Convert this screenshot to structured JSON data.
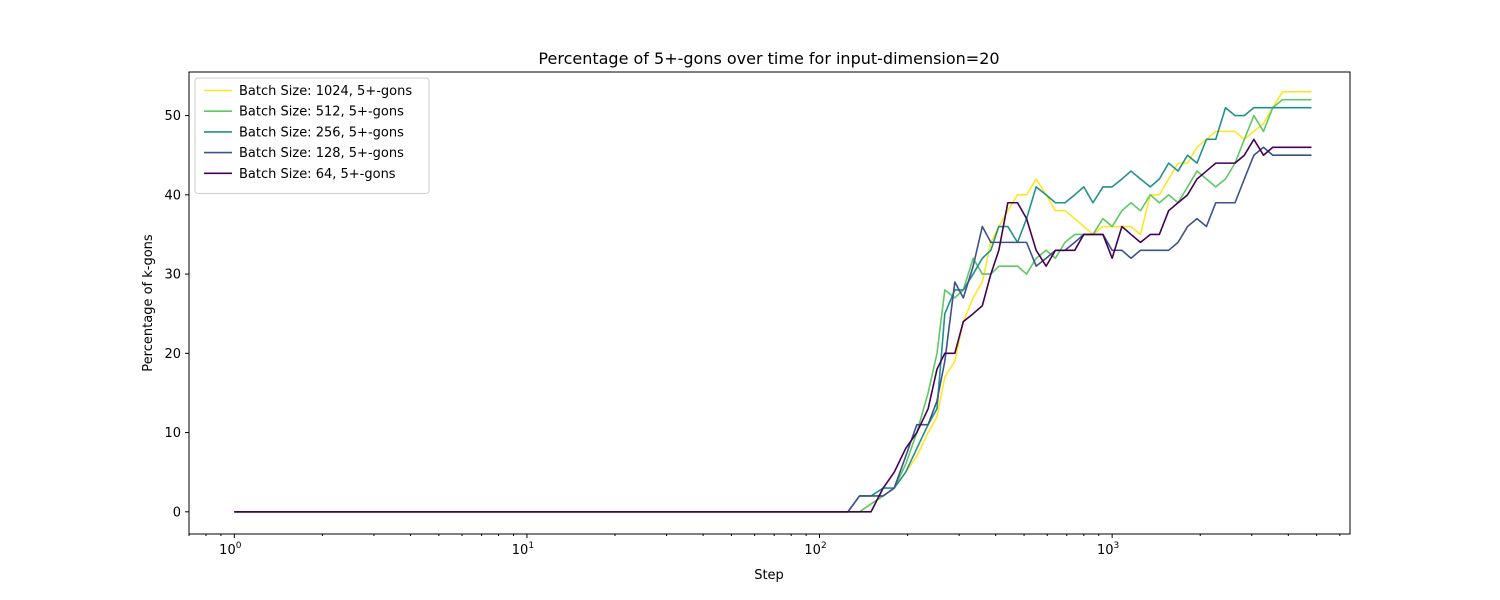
{
  "chart_data": {
    "type": "line",
    "title": "Percentage of 5+-gons over time for input-dimension=20",
    "xlabel": "Step",
    "ylabel": "Percentage of k-gons",
    "xscale": "log",
    "xlim": [
      0.7,
      6500
    ],
    "ylim": [
      -2.8,
      55.5
    ],
    "xticks": [
      {
        "value": 1,
        "base": "10",
        "exp": "0"
      },
      {
        "value": 10,
        "base": "10",
        "exp": "1"
      },
      {
        "value": 100,
        "base": "10",
        "exp": "2"
      },
      {
        "value": 1000,
        "base": "10",
        "exp": "3"
      }
    ],
    "yticks": [
      0,
      10,
      20,
      30,
      40,
      50
    ],
    "legend_position": "top-left",
    "series": [
      {
        "name": "Batch Size: 1024, 5+-gons",
        "color": "#fde725",
        "points": [
          [
            1,
            0
          ],
          [
            125,
            0
          ],
          [
            137,
            0
          ],
          [
            150,
            1
          ],
          [
            165,
            2
          ],
          [
            180,
            3
          ],
          [
            197,
            5
          ],
          [
            215,
            7
          ],
          [
            235,
            10
          ],
          [
            252,
            12
          ],
          [
            268,
            17
          ],
          [
            290,
            19
          ],
          [
            310,
            24
          ],
          [
            335,
            27
          ],
          [
            360,
            29
          ],
          [
            385,
            34
          ],
          [
            410,
            36
          ],
          [
            440,
            38
          ],
          [
            475,
            40
          ],
          [
            510,
            40
          ],
          [
            550,
            42
          ],
          [
            595,
            40
          ],
          [
            640,
            38
          ],
          [
            690,
            38
          ],
          [
            745,
            37
          ],
          [
            800,
            36
          ],
          [
            860,
            35
          ],
          [
            930,
            36
          ],
          [
            1000,
            36
          ],
          [
            1080,
            36
          ],
          [
            1160,
            36
          ],
          [
            1250,
            35
          ],
          [
            1350,
            40
          ],
          [
            1450,
            40
          ],
          [
            1560,
            42
          ],
          [
            1680,
            44
          ],
          [
            1810,
            44
          ],
          [
            1950,
            46
          ],
          [
            2100,
            47
          ],
          [
            2260,
            48
          ],
          [
            2440,
            48
          ],
          [
            2630,
            48
          ],
          [
            2830,
            47
          ],
          [
            3050,
            48
          ],
          [
            3290,
            49
          ],
          [
            3540,
            51
          ],
          [
            3820,
            53
          ],
          [
            4120,
            53
          ],
          [
            4440,
            53
          ],
          [
            4800,
            53
          ]
        ]
      },
      {
        "name": "Batch Size: 512, 5+-gons",
        "color": "#5ec962",
        "points": [
          [
            1,
            0
          ],
          [
            125,
            0
          ],
          [
            137,
            0
          ],
          [
            150,
            1
          ],
          [
            165,
            2
          ],
          [
            180,
            3
          ],
          [
            197,
            6
          ],
          [
            215,
            10
          ],
          [
            235,
            15
          ],
          [
            252,
            20
          ],
          [
            268,
            28
          ],
          [
            290,
            27
          ],
          [
            310,
            28
          ],
          [
            335,
            32
          ],
          [
            360,
            30
          ],
          [
            385,
            30
          ],
          [
            410,
            31
          ],
          [
            440,
            31
          ],
          [
            475,
            31
          ],
          [
            510,
            30
          ],
          [
            550,
            32
          ],
          [
            595,
            33
          ],
          [
            640,
            32
          ],
          [
            690,
            34
          ],
          [
            745,
            35
          ],
          [
            800,
            35
          ],
          [
            860,
            35
          ],
          [
            930,
            37
          ],
          [
            1000,
            36
          ],
          [
            1080,
            38
          ],
          [
            1160,
            39
          ],
          [
            1250,
            38
          ],
          [
            1350,
            40
          ],
          [
            1450,
            39
          ],
          [
            1560,
            40
          ],
          [
            1680,
            39
          ],
          [
            1810,
            41
          ],
          [
            1950,
            43
          ],
          [
            2100,
            42
          ],
          [
            2260,
            41
          ],
          [
            2440,
            42
          ],
          [
            2630,
            44
          ],
          [
            2830,
            47
          ],
          [
            3050,
            50
          ],
          [
            3290,
            48
          ],
          [
            3540,
            51
          ],
          [
            3820,
            52
          ],
          [
            4120,
            52
          ],
          [
            4440,
            52
          ],
          [
            4800,
            52
          ]
        ]
      },
      {
        "name": "Batch Size: 256, 5+-gons",
        "color": "#21918c",
        "points": [
          [
            1,
            0
          ],
          [
            125,
            0
          ],
          [
            137,
            2
          ],
          [
            150,
            2
          ],
          [
            165,
            3
          ],
          [
            180,
            3
          ],
          [
            197,
            5
          ],
          [
            215,
            8
          ],
          [
            235,
            11
          ],
          [
            252,
            13
          ],
          [
            268,
            25
          ],
          [
            290,
            28
          ],
          [
            310,
            28
          ],
          [
            335,
            30
          ],
          [
            360,
            32
          ],
          [
            385,
            33
          ],
          [
            410,
            36
          ],
          [
            440,
            36
          ],
          [
            475,
            34
          ],
          [
            510,
            37
          ],
          [
            550,
            41
          ],
          [
            595,
            40
          ],
          [
            640,
            39
          ],
          [
            690,
            39
          ],
          [
            745,
            40
          ],
          [
            800,
            41
          ],
          [
            860,
            39
          ],
          [
            930,
            41
          ],
          [
            1000,
            41
          ],
          [
            1080,
            42
          ],
          [
            1160,
            43
          ],
          [
            1250,
            42
          ],
          [
            1350,
            41
          ],
          [
            1450,
            42
          ],
          [
            1560,
            44
          ],
          [
            1680,
            43
          ],
          [
            1810,
            45
          ],
          [
            1950,
            44
          ],
          [
            2100,
            47
          ],
          [
            2260,
            47
          ],
          [
            2440,
            51
          ],
          [
            2630,
            50
          ],
          [
            2830,
            50
          ],
          [
            3050,
            51
          ],
          [
            3290,
            51
          ],
          [
            3540,
            51
          ],
          [
            3820,
            51
          ],
          [
            4120,
            51
          ],
          [
            4440,
            51
          ],
          [
            4800,
            51
          ]
        ]
      },
      {
        "name": "Batch Size: 128, 5+-gons",
        "color": "#3b528b",
        "points": [
          [
            1,
            0
          ],
          [
            125,
            0
          ],
          [
            137,
            2
          ],
          [
            150,
            2
          ],
          [
            165,
            2
          ],
          [
            180,
            3
          ],
          [
            197,
            7
          ],
          [
            215,
            11
          ],
          [
            235,
            11
          ],
          [
            252,
            14
          ],
          [
            268,
            19
          ],
          [
            290,
            29
          ],
          [
            310,
            27
          ],
          [
            335,
            31
          ],
          [
            360,
            36
          ],
          [
            385,
            34
          ],
          [
            410,
            34
          ],
          [
            440,
            34
          ],
          [
            475,
            34
          ],
          [
            510,
            34
          ],
          [
            550,
            31
          ],
          [
            595,
            32
          ],
          [
            640,
            33
          ],
          [
            690,
            33
          ],
          [
            745,
            34
          ],
          [
            800,
            35
          ],
          [
            860,
            35
          ],
          [
            930,
            35
          ],
          [
            1000,
            33
          ],
          [
            1080,
            33
          ],
          [
            1160,
            32
          ],
          [
            1250,
            33
          ],
          [
            1350,
            33
          ],
          [
            1450,
            33
          ],
          [
            1560,
            33
          ],
          [
            1680,
            34
          ],
          [
            1810,
            36
          ],
          [
            1950,
            37
          ],
          [
            2100,
            36
          ],
          [
            2260,
            39
          ],
          [
            2440,
            39
          ],
          [
            2630,
            39
          ],
          [
            2830,
            42
          ],
          [
            3050,
            45
          ],
          [
            3290,
            46
          ],
          [
            3540,
            45
          ],
          [
            3820,
            45
          ],
          [
            4120,
            45
          ],
          [
            4440,
            45
          ],
          [
            4800,
            45
          ]
        ]
      },
      {
        "name": "Batch Size: 64, 5+-gons",
        "color": "#440154",
        "points": [
          [
            1,
            0
          ],
          [
            125,
            0
          ],
          [
            137,
            0
          ],
          [
            150,
            0
          ],
          [
            165,
            3
          ],
          [
            180,
            5
          ],
          [
            197,
            8
          ],
          [
            215,
            10
          ],
          [
            235,
            13
          ],
          [
            252,
            18
          ],
          [
            268,
            20
          ],
          [
            290,
            20
          ],
          [
            310,
            24
          ],
          [
            335,
            25
          ],
          [
            360,
            26
          ],
          [
            385,
            30
          ],
          [
            410,
            33
          ],
          [
            440,
            39
          ],
          [
            475,
            39
          ],
          [
            510,
            37
          ],
          [
            550,
            33
          ],
          [
            595,
            31
          ],
          [
            640,
            33
          ],
          [
            690,
            33
          ],
          [
            745,
            33
          ],
          [
            800,
            35
          ],
          [
            860,
            35
          ],
          [
            930,
            35
          ],
          [
            1000,
            32
          ],
          [
            1080,
            36
          ],
          [
            1160,
            35
          ],
          [
            1250,
            34
          ],
          [
            1350,
            35
          ],
          [
            1450,
            35
          ],
          [
            1560,
            38
          ],
          [
            1680,
            39
          ],
          [
            1810,
            40
          ],
          [
            1950,
            42
          ],
          [
            2100,
            43
          ],
          [
            2260,
            44
          ],
          [
            2440,
            44
          ],
          [
            2630,
            44
          ],
          [
            2830,
            45
          ],
          [
            3050,
            47
          ],
          [
            3290,
            45
          ],
          [
            3540,
            46
          ],
          [
            3820,
            46
          ],
          [
            4120,
            46
          ],
          [
            4440,
            46
          ],
          [
            4800,
            46
          ]
        ]
      }
    ]
  }
}
